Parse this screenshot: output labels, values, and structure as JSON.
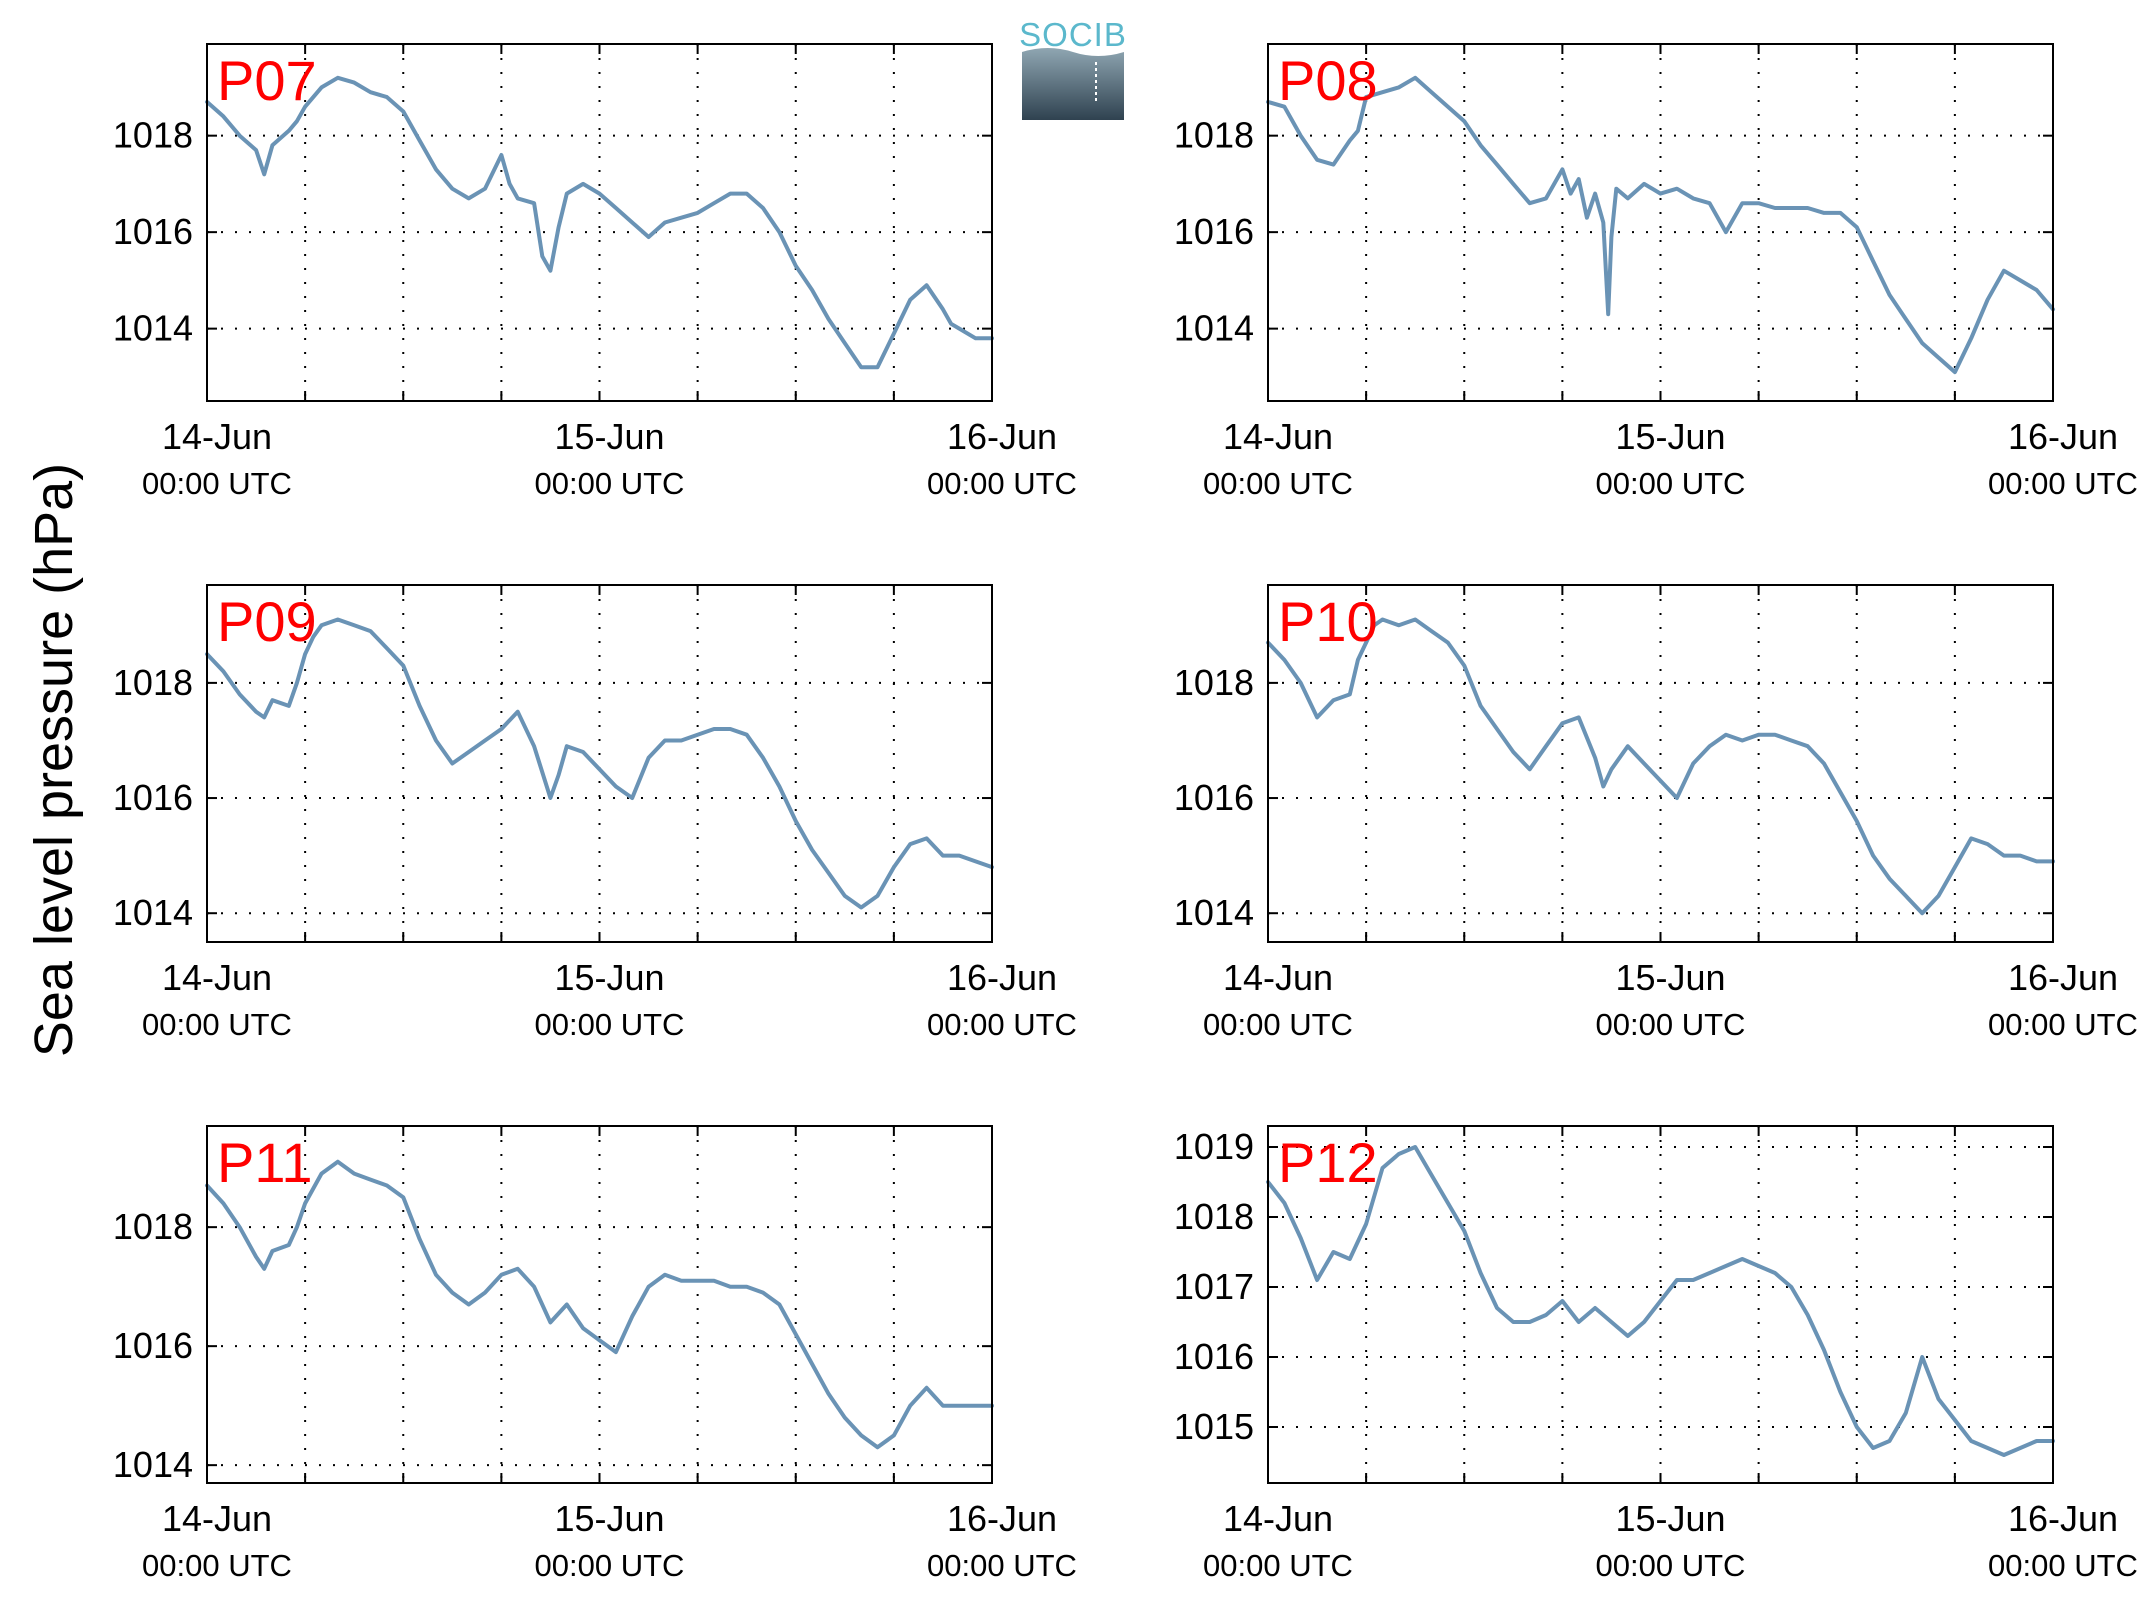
{
  "figure": {
    "ylabel": "Sea level pressure (hPa)",
    "logo_text": "SOCIB",
    "line_color": "#6a93b5",
    "label_color": "#ff0000",
    "logo_color": "#5bb8cc"
  },
  "chart_data": [
    {
      "type": "line",
      "panel_label": "P07",
      "x_ticks": [
        {
          "main": "14-Jun",
          "sub": "00:00 UTC"
        },
        {
          "main": "15-Jun",
          "sub": "00:00 UTC"
        },
        {
          "main": "16-Jun",
          "sub": "00:00 UTC"
        }
      ],
      "y_ticks": [
        1014,
        1016,
        1018
      ],
      "ylim": [
        1012.5,
        1019.9
      ],
      "xlim": [
        0,
        48
      ],
      "grid": true,
      "x_hours": [
        0,
        1,
        2,
        3,
        3.5,
        4,
        5,
        5.5,
        6,
        7,
        8,
        9,
        10,
        11,
        12,
        13,
        14,
        15,
        16,
        17,
        18,
        18.5,
        19,
        20,
        20.5,
        21,
        21.5,
        22,
        23,
        24,
        25,
        26,
        27,
        28,
        29,
        30,
        31,
        32,
        33,
        34,
        35,
        36,
        37,
        38,
        39,
        40,
        41,
        42,
        43,
        44,
        45,
        45.5,
        46,
        47,
        48
      ],
      "values": [
        1018.7,
        1018.4,
        1018.0,
        1017.7,
        1017.2,
        1017.8,
        1018.1,
        1018.3,
        1018.6,
        1019.0,
        1019.2,
        1019.1,
        1018.9,
        1018.8,
        1018.5,
        1017.9,
        1017.3,
        1016.9,
        1016.7,
        1016.9,
        1017.6,
        1017.0,
        1016.7,
        1016.6,
        1015.5,
        1015.2,
        1016.1,
        1016.8,
        1017.0,
        1016.8,
        1016.5,
        1016.2,
        1015.9,
        1016.2,
        1016.3,
        1016.4,
        1016.6,
        1016.8,
        1016.8,
        1016.5,
        1016.0,
        1015.3,
        1014.8,
        1014.2,
        1013.7,
        1013.2,
        1013.2,
        1013.9,
        1014.6,
        1014.9,
        1014.4,
        1014.1,
        1014.0,
        1013.8,
        1013.8
      ]
    },
    {
      "type": "line",
      "panel_label": "P08",
      "x_ticks": [
        {
          "main": "14-Jun",
          "sub": "00:00 UTC"
        },
        {
          "main": "15-Jun",
          "sub": "00:00 UTC"
        },
        {
          "main": "16-Jun",
          "sub": "00:00 UTC"
        }
      ],
      "y_ticks": [
        1014,
        1016,
        1018
      ],
      "ylim": [
        1012.5,
        1019.9
      ],
      "xlim": [
        0,
        48
      ],
      "grid": true,
      "x_hours": [
        0,
        1,
        2,
        3,
        4,
        5,
        5.5,
        6,
        7,
        8,
        9,
        10,
        11,
        12,
        13,
        14,
        15,
        16,
        17,
        18,
        18.5,
        19,
        19.5,
        20,
        20.5,
        20.8,
        21,
        21.3,
        22,
        23,
        24,
        25,
        26,
        27,
        28,
        29,
        30,
        31,
        32,
        33,
        34,
        35,
        36,
        37,
        38,
        39,
        40,
        41,
        42,
        43,
        44,
        45,
        46,
        47,
        48
      ],
      "values": [
        1018.7,
        1018.6,
        1018.0,
        1017.5,
        1017.4,
        1017.9,
        1018.1,
        1018.8,
        1018.9,
        1019.0,
        1019.2,
        1018.9,
        1018.6,
        1018.3,
        1017.8,
        1017.4,
        1017.0,
        1016.6,
        1016.7,
        1017.3,
        1016.8,
        1017.1,
        1016.3,
        1016.8,
        1016.2,
        1014.3,
        1015.9,
        1016.9,
        1016.7,
        1017.0,
        1016.8,
        1016.9,
        1016.7,
        1016.6,
        1016.0,
        1016.6,
        1016.6,
        1016.5,
        1016.5,
        1016.5,
        1016.4,
        1016.4,
        1016.1,
        1015.4,
        1014.7,
        1014.2,
        1013.7,
        1013.4,
        1013.1,
        1013.8,
        1014.6,
        1015.2,
        1015.0,
        1014.8,
        1014.4
      ]
    },
    {
      "type": "line",
      "panel_label": "P09",
      "x_ticks": [
        {
          "main": "14-Jun",
          "sub": "00:00 UTC"
        },
        {
          "main": "15-Jun",
          "sub": "00:00 UTC"
        },
        {
          "main": "16-Jun",
          "sub": "00:00 UTC"
        }
      ],
      "y_ticks": [
        1014,
        1016,
        1018
      ],
      "ylim": [
        1013.5,
        1019.7
      ],
      "xlim": [
        0,
        48
      ],
      "grid": true,
      "x_hours": [
        0,
        1,
        2,
        3,
        3.5,
        4,
        5,
        5.5,
        6,
        6.5,
        7,
        8,
        9,
        10,
        11,
        12,
        13,
        14,
        15,
        16,
        17,
        18,
        19,
        20,
        21,
        21.5,
        22,
        23,
        24,
        25,
        26,
        27,
        28,
        29,
        30,
        31,
        32,
        33,
        34,
        35,
        36,
        37,
        38,
        39,
        40,
        41,
        42,
        43,
        44,
        45,
        46,
        47,
        48
      ],
      "values": [
        1018.5,
        1018.2,
        1017.8,
        1017.5,
        1017.4,
        1017.7,
        1017.6,
        1018.0,
        1018.5,
        1018.8,
        1019.0,
        1019.1,
        1019.0,
        1018.9,
        1018.6,
        1018.3,
        1017.6,
        1017.0,
        1016.6,
        1016.8,
        1017.0,
        1017.2,
        1017.5,
        1016.9,
        1016.0,
        1016.4,
        1016.9,
        1016.8,
        1016.5,
        1016.2,
        1016.0,
        1016.7,
        1017.0,
        1017.0,
        1017.1,
        1017.2,
        1017.2,
        1017.1,
        1016.7,
        1016.2,
        1015.6,
        1015.1,
        1014.7,
        1014.3,
        1014.1,
        1014.3,
        1014.8,
        1015.2,
        1015.3,
        1015.0,
        1015.0,
        1014.9,
        1014.8
      ]
    },
    {
      "type": "line",
      "panel_label": "P10",
      "x_ticks": [
        {
          "main": "14-Jun",
          "sub": "00:00 UTC"
        },
        {
          "main": "15-Jun",
          "sub": "00:00 UTC"
        },
        {
          "main": "16-Jun",
          "sub": "00:00 UTC"
        }
      ],
      "y_ticks": [
        1014,
        1016,
        1018
      ],
      "ylim": [
        1013.5,
        1019.7
      ],
      "xlim": [
        0,
        48
      ],
      "grid": true,
      "x_hours": [
        0,
        1,
        2,
        3,
        4,
        5,
        5.5,
        6,
        6.5,
        7,
        8,
        9,
        10,
        11,
        12,
        13,
        14,
        15,
        16,
        17,
        18,
        19,
        20,
        20.5,
        21,
        22,
        23,
        24,
        25,
        26,
        27,
        28,
        29,
        30,
        31,
        32,
        33,
        34,
        35,
        36,
        37,
        38,
        39,
        40,
        41,
        42,
        43,
        44,
        45,
        46,
        47,
        48
      ],
      "values": [
        1018.7,
        1018.4,
        1018.0,
        1017.4,
        1017.7,
        1017.8,
        1018.4,
        1018.7,
        1019.0,
        1019.1,
        1019.0,
        1019.1,
        1018.9,
        1018.7,
        1018.3,
        1017.6,
        1017.2,
        1016.8,
        1016.5,
        1016.9,
        1017.3,
        1017.4,
        1016.7,
        1016.2,
        1016.5,
        1016.9,
        1016.6,
        1016.3,
        1016.0,
        1016.6,
        1016.9,
        1017.1,
        1017.0,
        1017.1,
        1017.1,
        1017.0,
        1016.9,
        1016.6,
        1016.1,
        1015.6,
        1015.0,
        1014.6,
        1014.3,
        1014.0,
        1014.3,
        1014.8,
        1015.3,
        1015.2,
        1015.0,
        1015.0,
        1014.9,
        1014.9
      ]
    },
    {
      "type": "line",
      "panel_label": "P11",
      "x_ticks": [
        {
          "main": "14-Jun",
          "sub": "00:00 UTC"
        },
        {
          "main": "15-Jun",
          "sub": "00:00 UTC"
        },
        {
          "main": "16-Jun",
          "sub": "00:00 UTC"
        }
      ],
      "y_ticks": [
        1014,
        1016,
        1018
      ],
      "ylim": [
        1013.7,
        1019.7
      ],
      "xlim": [
        0,
        48
      ],
      "grid": true,
      "x_hours": [
        0,
        1,
        2,
        3,
        3.5,
        4,
        5,
        5.5,
        6,
        7,
        8,
        9,
        10,
        11,
        12,
        13,
        14,
        15,
        16,
        17,
        18,
        19,
        20,
        21,
        22,
        23,
        24,
        25,
        26,
        27,
        28,
        29,
        30,
        31,
        32,
        33,
        34,
        35,
        36,
        37,
        38,
        39,
        40,
        41,
        42,
        43,
        44,
        45,
        46,
        47,
        48
      ],
      "values": [
        1018.7,
        1018.4,
        1018.0,
        1017.5,
        1017.3,
        1017.6,
        1017.7,
        1018.0,
        1018.4,
        1018.9,
        1019.1,
        1018.9,
        1018.8,
        1018.7,
        1018.5,
        1017.8,
        1017.2,
        1016.9,
        1016.7,
        1016.9,
        1017.2,
        1017.3,
        1017.0,
        1016.4,
        1016.7,
        1016.3,
        1016.1,
        1015.9,
        1016.5,
        1017.0,
        1017.2,
        1017.1,
        1017.1,
        1017.1,
        1017.0,
        1017.0,
        1016.9,
        1016.7,
        1016.2,
        1015.7,
        1015.2,
        1014.8,
        1014.5,
        1014.3,
        1014.5,
        1015.0,
        1015.3,
        1015.0,
        1015.0,
        1015.0,
        1015.0
      ]
    },
    {
      "type": "line",
      "panel_label": "P12",
      "x_ticks": [
        {
          "main": "14-Jun",
          "sub": "00:00 UTC"
        },
        {
          "main": "15-Jun",
          "sub": "00:00 UTC"
        },
        {
          "main": "16-Jun",
          "sub": "00:00 UTC"
        }
      ],
      "y_ticks": [
        1015,
        1016,
        1017,
        1018,
        1019
      ],
      "ylim": [
        1014.2,
        1019.3
      ],
      "xlim": [
        0,
        48
      ],
      "grid": true,
      "x_hours": [
        0,
        1,
        2,
        3,
        4,
        5,
        6,
        7,
        8,
        9,
        10,
        11,
        12,
        13,
        14,
        15,
        16,
        17,
        18,
        19,
        20,
        21,
        22,
        23,
        24,
        25,
        26,
        27,
        28,
        29,
        30,
        31,
        32,
        33,
        34,
        35,
        36,
        37,
        38,
        39,
        40,
        41,
        42,
        43,
        44,
        45,
        46,
        47,
        48
      ],
      "values": [
        1018.5,
        1018.2,
        1017.7,
        1017.1,
        1017.5,
        1017.4,
        1017.9,
        1018.7,
        1018.9,
        1019.0,
        1018.6,
        1018.2,
        1017.8,
        1017.2,
        1016.7,
        1016.5,
        1016.5,
        1016.6,
        1016.8,
        1016.5,
        1016.7,
        1016.5,
        1016.3,
        1016.5,
        1016.8,
        1017.1,
        1017.1,
        1017.2,
        1017.3,
        1017.4,
        1017.3,
        1017.2,
        1017.0,
        1016.6,
        1016.1,
        1015.5,
        1015.0,
        1014.7,
        1014.8,
        1015.2,
        1016.0,
        1015.4,
        1015.1,
        1014.8,
        1014.7,
        1014.6,
        1014.7,
        1014.8,
        1014.8
      ]
    }
  ]
}
